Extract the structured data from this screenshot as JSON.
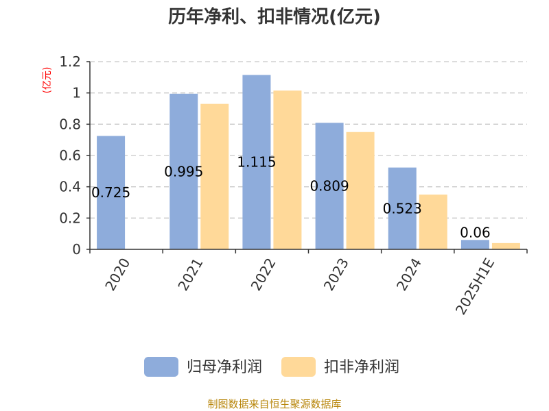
{
  "chart_data": {
    "type": "bar",
    "title": "历年净利、扣非情况(亿元)",
    "ylabel": "(亿元)",
    "xlabel": "",
    "categories": [
      "2020",
      "2021",
      "2022",
      "2023",
      "2024",
      "2025H1E"
    ],
    "series": [
      {
        "name": "归母净利润",
        "color": "#8eacdb",
        "values": [
          0.725,
          0.995,
          1.115,
          0.809,
          0.523,
          0.06
        ]
      },
      {
        "name": "扣非净利润",
        "color": "#ffd999",
        "values": [
          null,
          0.93,
          1.015,
          0.75,
          0.35,
          0.04
        ]
      }
    ],
    "data_labels": [
      "0.725",
      "0.995",
      "1.115",
      "0.809",
      "0.523",
      "0.06"
    ],
    "ylim": [
      0,
      1.2
    ],
    "yticks": [
      "0",
      "0.2",
      "0.4",
      "0.6",
      "0.8",
      "1",
      "1.2"
    ],
    "grid": true,
    "legend_position": "bottom"
  },
  "source_text": "制图数据来自恒生聚源数据库"
}
